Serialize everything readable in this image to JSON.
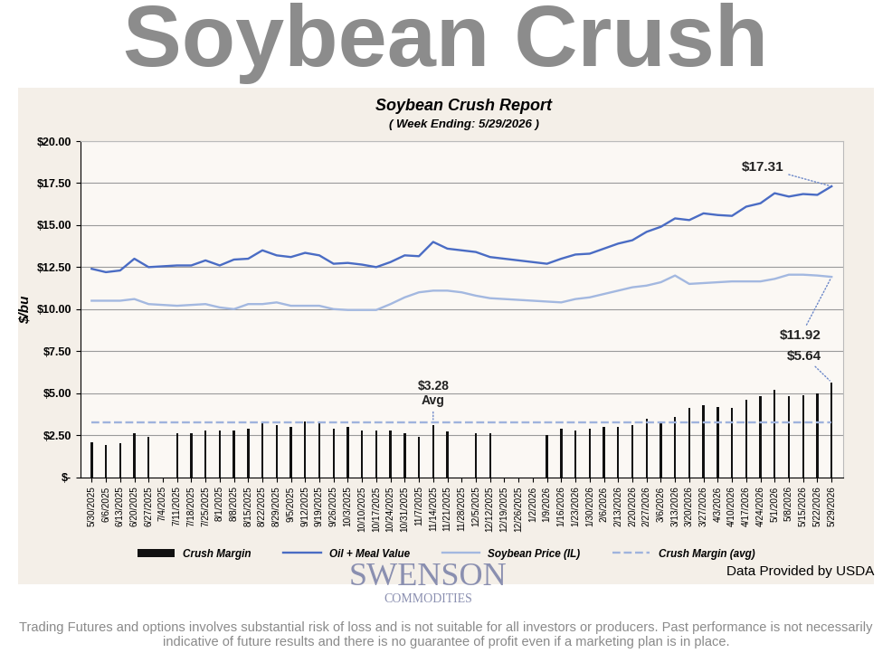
{
  "header": "Soybean Crush",
  "chart_data": {
    "type": "bar",
    "title": "Soybean Crush Report",
    "subtitle": "( Week Ending: 5/29/2026 )",
    "y_label": "$/bu",
    "categories": [
      "5/30/2025",
      "6/6/2025",
      "6/13/2025",
      "6/20/2025",
      "6/27/2025",
      "7/4/2025",
      "7/11/2025",
      "7/18/2025",
      "7/25/2025",
      "8/1/2025",
      "8/8/2025",
      "8/15/2025",
      "8/22/2025",
      "8/29/2025",
      "9/5/2025",
      "9/12/2025",
      "9/19/2025",
      "9/26/2025",
      "10/3/2025",
      "10/10/2025",
      "10/17/2025",
      "10/24/2025",
      "10/31/2025",
      "11/7/2025",
      "11/14/2025",
      "11/21/2025",
      "11/28/2025",
      "12/5/2025",
      "12/12/2025",
      "12/19/2025",
      "12/26/2025",
      "1/2/2026",
      "1/9/2026",
      "1/16/2026",
      "1/23/2026",
      "1/30/2026",
      "2/6/2026",
      "2/13/2026",
      "2/20/2026",
      "2/27/2026",
      "3/6/2026",
      "3/13/2026",
      "3/20/2026",
      "3/27/2026",
      "4/3/2026",
      "4/10/2026",
      "4/17/2026",
      "4/24/2026",
      "5/1/2026",
      "5/8/2026",
      "5/15/2026",
      "5/22/2026",
      "5/29/2026"
    ],
    "series": [
      {
        "name": "Crush Margin",
        "type": "bar",
        "color": "#111111",
        "values": [
          2.1,
          1.9,
          2.0,
          2.6,
          2.4,
          null,
          2.6,
          2.6,
          2.8,
          2.8,
          2.8,
          2.9,
          3.3,
          3.1,
          3.0,
          3.3,
          3.2,
          2.9,
          3.0,
          2.8,
          2.8,
          2.8,
          2.6,
          2.4,
          3.1,
          2.7,
          null,
          2.6,
          2.6,
          null,
          null,
          null,
          2.5,
          2.9,
          2.8,
          2.9,
          3.0,
          3.0,
          3.1,
          3.5,
          3.3,
          3.6,
          4.1,
          4.3,
          4.2,
          4.1,
          4.6,
          4.8,
          5.2,
          4.8,
          4.9,
          5.0,
          5.64
        ]
      },
      {
        "name": "Oil + Meal Value",
        "type": "line",
        "color": "#4a6cc4",
        "line_style": "solid",
        "values": [
          12.4,
          12.2,
          12.3,
          13.0,
          12.5,
          12.55,
          12.6,
          12.6,
          12.9,
          12.6,
          12.95,
          13.0,
          13.5,
          13.2,
          13.1,
          13.35,
          13.2,
          12.7,
          12.75,
          12.65,
          12.5,
          12.8,
          13.2,
          13.15,
          14.0,
          13.6,
          13.5,
          13.4,
          13.1,
          13.0,
          12.9,
          12.8,
          12.7,
          13.0,
          13.25,
          13.3,
          13.6,
          13.9,
          14.1,
          14.6,
          14.9,
          15.4,
          15.3,
          15.7,
          15.6,
          15.55,
          16.1,
          16.3,
          16.9,
          16.7,
          16.85,
          16.8,
          17.31
        ]
      },
      {
        "name": "Soybean Price (IL)",
        "type": "line",
        "color": "#a3b8e0",
        "line_style": "solid",
        "values": [
          10.5,
          10.5,
          10.5,
          10.6,
          10.3,
          10.25,
          10.2,
          10.25,
          10.3,
          10.1,
          10.0,
          10.3,
          10.3,
          10.4,
          10.2,
          10.2,
          10.2,
          10.0,
          9.95,
          9.95,
          9.95,
          10.3,
          10.7,
          11.0,
          11.1,
          11.1,
          11.0,
          10.8,
          10.65,
          10.6,
          10.55,
          10.5,
          10.45,
          10.4,
          10.6,
          10.7,
          10.9,
          11.1,
          11.3,
          11.4,
          11.6,
          12.0,
          11.5,
          11.55,
          11.6,
          11.65,
          11.65,
          11.65,
          11.8,
          12.05,
          12.05,
          12.0,
          11.92
        ]
      },
      {
        "name": "Crush Margin (avg)",
        "type": "line",
        "color": "#9fb3dd",
        "line_style": "dashed",
        "values": [
          3.28,
          3.28,
          3.28,
          3.28,
          3.28,
          3.28,
          3.28,
          3.28,
          3.28,
          3.28,
          3.28,
          3.28,
          3.28,
          3.28,
          3.28,
          3.28,
          3.28,
          3.28,
          3.28,
          3.28,
          3.28,
          3.28,
          3.28,
          3.28,
          3.28,
          3.28,
          3.28,
          3.28,
          3.28,
          3.28,
          3.28,
          3.28,
          3.28,
          3.28,
          3.28,
          3.28,
          3.28,
          3.28,
          3.28,
          3.28,
          3.28,
          3.28,
          3.28,
          3.28,
          3.28,
          3.28,
          3.28,
          3.28,
          3.28,
          3.28,
          3.28,
          3.28,
          3.28
        ]
      }
    ],
    "annotations": [
      {
        "text": "$17.31",
        "series": "Oil + Meal Value",
        "category": "5/29/2026",
        "value": 17.31
      },
      {
        "text": "$11.92",
        "series": "Soybean Price (IL)",
        "category": "5/29/2026",
        "value": 11.92
      },
      {
        "text": "$5.64",
        "series": "Crush Margin",
        "category": "5/29/2026",
        "value": 5.64
      },
      {
        "text": "$3.28\nAvg",
        "series": "Crush Margin (avg)",
        "category": "11/14/2025",
        "value": 3.28
      }
    ],
    "ylim": [
      0,
      20
    ],
    "yticks": [
      {
        "value": 0,
        "label": "$-"
      },
      {
        "value": 2.5,
        "label": "$2.50"
      },
      {
        "value": 5,
        "label": "$5.00"
      },
      {
        "value": 7.5,
        "label": "$7.50"
      },
      {
        "value": 10,
        "label": "$10.00"
      },
      {
        "value": 12.5,
        "label": "$12.50"
      },
      {
        "value": 15,
        "label": "$15.00"
      },
      {
        "value": 17.5,
        "label": "$17.50"
      },
      {
        "value": 20,
        "label": "$20.00"
      }
    ],
    "grid": true,
    "legend": "bottom"
  },
  "footer": {
    "logo": {
      "name": "SWENSON",
      "tagline": "COMMODITIES"
    },
    "source": "Data Provided by USDA",
    "disclaimer": "Trading Futures and options involves substantial risk of loss and is not suitable for all investors or producers. Past performance is not necessarily indicative of future results and there is no guarantee of profit even if a marketing plan is in place."
  }
}
